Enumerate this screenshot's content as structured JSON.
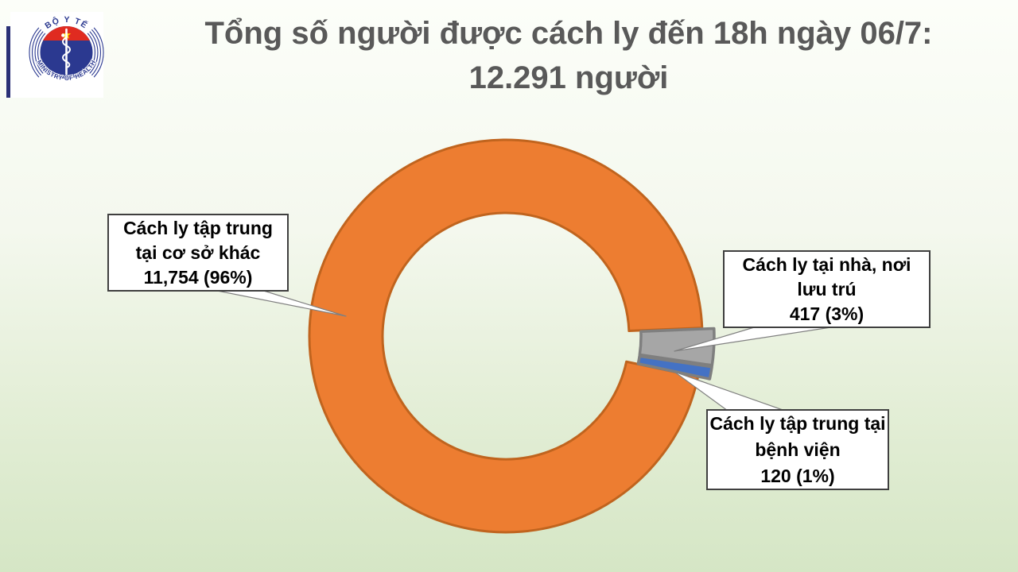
{
  "background": {
    "gradient_top": "#FCFEF9",
    "gradient_bottom": "#D5E6C5"
  },
  "logo": {
    "top_text": "BỘ Y TẾ",
    "bottom_text": "MINISTRY OF HEALTH",
    "colors": {
      "circle_blue": "#2B3990",
      "cap_red": "#E02B20",
      "star_yellow": "#FFDE00",
      "staff_white": "#FFFFFF"
    }
  },
  "title": {
    "line1": "Tổng số người được cách ly đến 18h ngày 06/7:",
    "line2": "12.291 người",
    "color": "#595959"
  },
  "chart_data": {
    "type": "pie",
    "variant": "exploded-donut",
    "title": "Tổng số người được cách ly đến 18h ngày 06/7: 12.291 người",
    "total_value": "12.291",
    "total_unit": "người",
    "start_angle_deg": 12,
    "clockwise": true,
    "legend_position": "callout-labels",
    "slices": [
      {
        "id": "other_facilities",
        "label": "Cách ly tập trung tại cơ sở khác",
        "value": 11754,
        "percent": 96,
        "color": "#ED7D31",
        "border_color": "#C0641E",
        "exploded": false
      },
      {
        "id": "home_residence",
        "label": "Cách ly tại nhà, nơi lưu trú",
        "value": 417,
        "percent": 3,
        "color": "#A6A6A6",
        "border_color": "#7F7F7F",
        "exploded": true
      },
      {
        "id": "hospital",
        "label": "Cách ly tập trung tại bệnh viện",
        "value": 120,
        "percent": 1,
        "color": "#4472C4",
        "border_color": "#7F7F7F",
        "exploded": true
      }
    ]
  },
  "callouts": {
    "other": {
      "lines": [
        "Cách ly tập trung",
        "tại cơ sở khác",
        "11,754  (96%)"
      ]
    },
    "home": {
      "lines": [
        "Cách ly tại nhà, nơi",
        "lưu trú",
        "417 (3%)"
      ]
    },
    "hospital": {
      "lines": [
        "Cách ly tập trung tại",
        "bệnh viện",
        "120  (1%)"
      ]
    }
  }
}
